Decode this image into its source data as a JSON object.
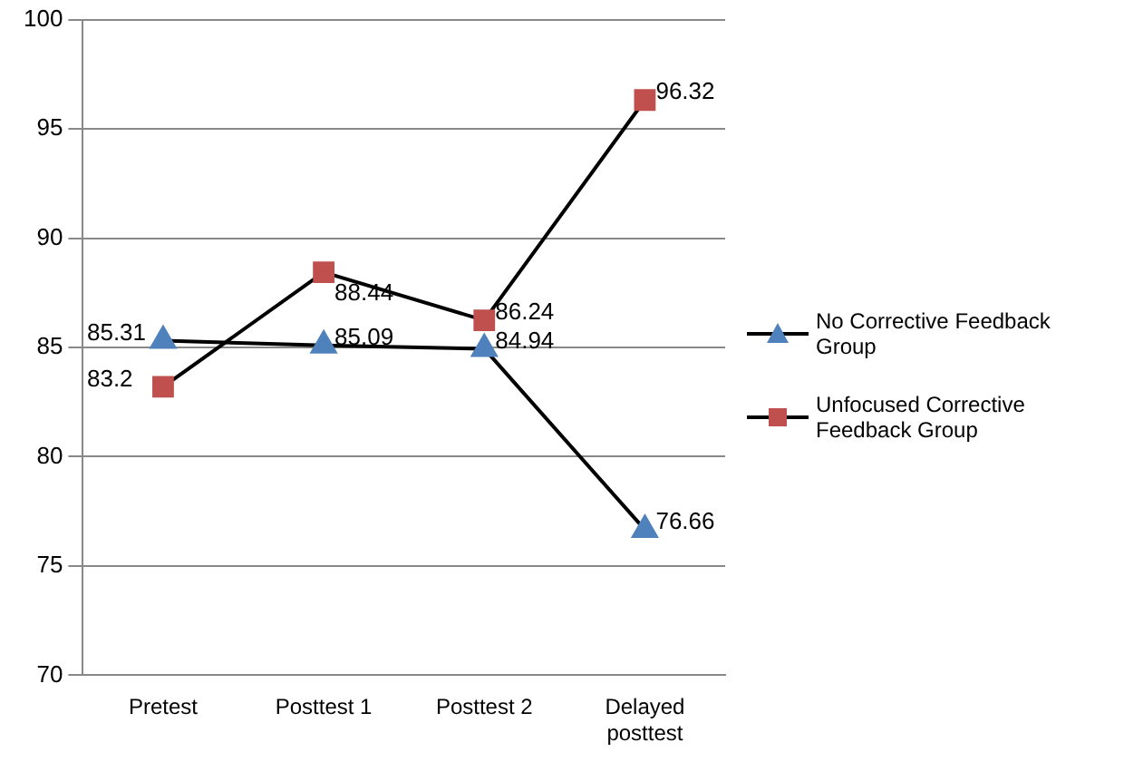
{
  "chart_data": {
    "type": "line",
    "categories": [
      "Pretest",
      "Posttest 1",
      "Posttest 2",
      "Delayed posttest"
    ],
    "series": [
      {
        "name": "No Corrective Feedback Group",
        "color": "#4f81bd",
        "marker": "triangle",
        "values": [
          85.31,
          85.09,
          84.94,
          76.66
        ]
      },
      {
        "name": "Unfocused Corrective Feedback Group",
        "color": "#c0504d",
        "marker": "square",
        "values": [
          83.2,
          88.44,
          86.24,
          96.32
        ]
      }
    ],
    "ylim": [
      70,
      100
    ],
    "yticks": [
      70,
      75,
      80,
      85,
      90,
      95,
      100
    ],
    "grid": "y",
    "legend": "right",
    "data_labels": true
  }
}
